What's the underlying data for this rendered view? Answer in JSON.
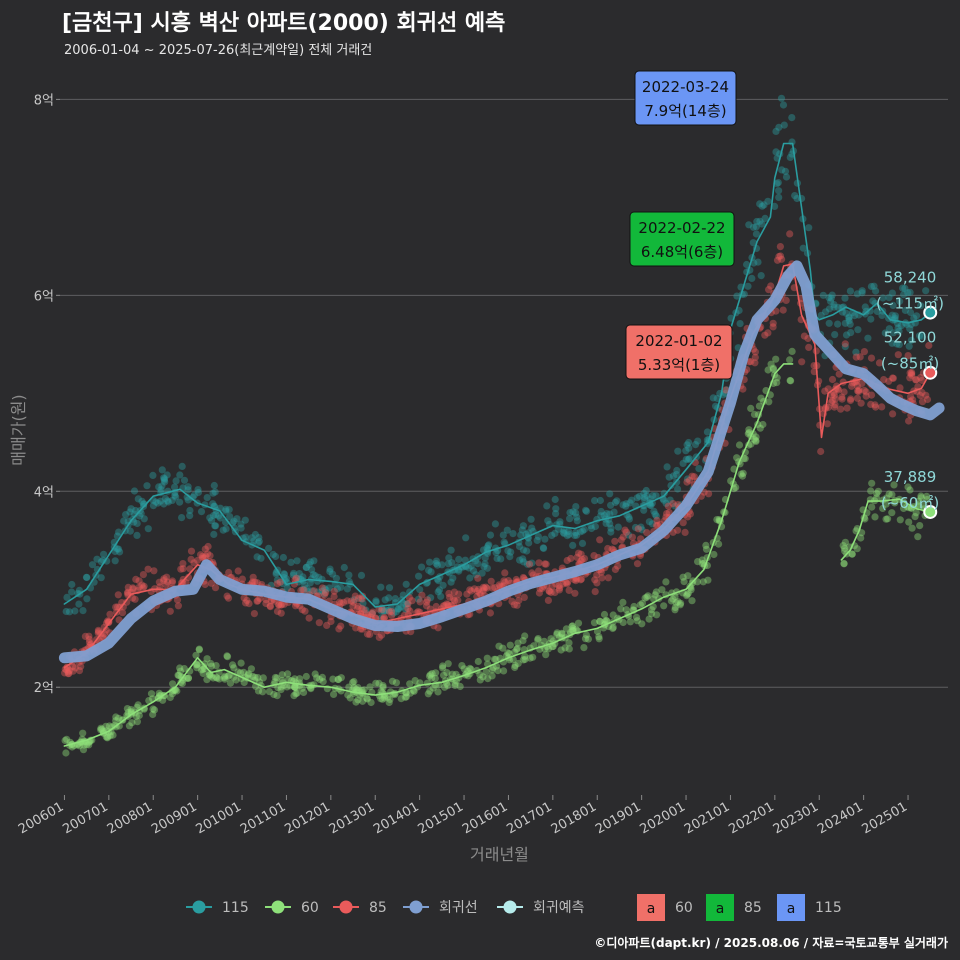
{
  "header": {
    "title": "[금천구] 시흥 벽산 아파트(2000) 회귀선 예측",
    "subtitle": "2006-01-04 ~ 2025-07-26(최근계약일) 전체 거래건"
  },
  "caption": "©디아파트(dapt.kr) / 2025.08.06 / 자료=국토교통부 실거래가",
  "chart_data": {
    "type": "line",
    "xlabel": "거래년월",
    "ylabel": "매매가(원)",
    "x_range": [
      2005.9,
      2025.9
    ],
    "y_range": [
      0.9,
      8.3
    ],
    "y_ticks": [
      {
        "value": 2,
        "label": "2억"
      },
      {
        "value": 4,
        "label": "4억"
      },
      {
        "value": 6,
        "label": "6억"
      },
      {
        "value": 8,
        "label": "8억"
      }
    ],
    "x_ticks": [
      {
        "value": 2006.0,
        "label": "200601"
      },
      {
        "value": 2007.0,
        "label": "200701"
      },
      {
        "value": 2008.0,
        "label": "200801"
      },
      {
        "value": 2009.0,
        "label": "200901"
      },
      {
        "value": 2010.0,
        "label": "201001"
      },
      {
        "value": 2011.0,
        "label": "201101"
      },
      {
        "value": 2012.0,
        "label": "201201"
      },
      {
        "value": 2013.0,
        "label": "201301"
      },
      {
        "value": 2014.0,
        "label": "201401"
      },
      {
        "value": 2015.0,
        "label": "201501"
      },
      {
        "value": 2016.0,
        "label": "201601"
      },
      {
        "value": 2017.0,
        "label": "201701"
      },
      {
        "value": 2018.0,
        "label": "201801"
      },
      {
        "value": 2019.0,
        "label": "201901"
      },
      {
        "value": 2020.0,
        "label": "202001"
      },
      {
        "value": 2021.0,
        "label": "202101"
      },
      {
        "value": 2022.0,
        "label": "202201"
      },
      {
        "value": 2023.0,
        "label": "202301"
      },
      {
        "value": 2024.0,
        "label": "202401"
      },
      {
        "value": 2025.0,
        "label": "202501"
      }
    ],
    "grid": true,
    "legend_position": "bottom",
    "series": [
      {
        "name": "115",
        "color": "#2a9da0",
        "x": [
          2006.0,
          2006.5,
          2007.0,
          2007.5,
          2008.0,
          2008.6,
          2009.0,
          2009.5,
          2010.0,
          2010.5,
          2011.0,
          2011.5,
          2012.0,
          2012.5,
          2013.0,
          2013.5,
          2014.0,
          2014.5,
          2015.0,
          2015.5,
          2016.0,
          2016.5,
          2017.0,
          2017.5,
          2018.0,
          2018.5,
          2019.0,
          2019.5,
          2020.0,
          2020.5,
          2020.8,
          2021.0,
          2021.3,
          2021.6,
          2021.9,
          2022.0,
          2022.2,
          2022.4,
          2022.6,
          2022.8,
          2022.9,
          2023.0,
          2023.3,
          2023.6,
          2024.0,
          2024.3,
          2024.6,
          2025.0,
          2025.3,
          2025.5
        ],
        "y": [
          2.85,
          3.0,
          3.35,
          3.7,
          3.95,
          4.02,
          3.88,
          3.8,
          3.5,
          3.4,
          3.05,
          3.1,
          3.08,
          3.05,
          2.82,
          2.85,
          3.05,
          3.15,
          3.25,
          3.38,
          3.45,
          3.55,
          3.65,
          3.62,
          3.7,
          3.75,
          3.85,
          3.95,
          4.22,
          4.5,
          5.0,
          5.65,
          6.1,
          6.55,
          6.8,
          7.2,
          7.55,
          7.55,
          6.9,
          6.25,
          5.8,
          5.75,
          5.8,
          5.88,
          5.8,
          5.92,
          5.75,
          5.72,
          5.75,
          5.82
        ]
      },
      {
        "name": "60",
        "color": "#8ee07a",
        "x": [
          2006.0,
          2006.5,
          2007.0,
          2007.5,
          2008.0,
          2008.5,
          2009.0,
          2009.3,
          2009.6,
          2010.0,
          2010.5,
          2011.0,
          2011.5,
          2012.0,
          2012.5,
          2013.0,
          2013.5,
          2014.0,
          2014.5,
          2015.0,
          2015.5,
          2016.0,
          2016.5,
          2017.0,
          2017.5,
          2018.0,
          2018.5,
          2019.0,
          2019.5,
          2020.0,
          2020.4,
          2020.8,
          2021.2,
          2021.6,
          2022.0,
          2022.2,
          2022.4
        ],
        "y": [
          1.4,
          1.46,
          1.55,
          1.72,
          1.85,
          2.0,
          2.3,
          2.15,
          2.18,
          2.1,
          2.0,
          2.05,
          2.02,
          2.0,
          1.95,
          1.92,
          1.95,
          2.02,
          2.05,
          2.12,
          2.2,
          2.3,
          2.38,
          2.45,
          2.55,
          2.6,
          2.7,
          2.8,
          2.92,
          3.0,
          3.2,
          3.7,
          4.3,
          4.7,
          5.2,
          5.3,
          5.3
        ]
      },
      {
        "name": "60",
        "color": "#8ee07a",
        "x": [
          2023.5,
          2023.7,
          2023.9,
          2024.1,
          2024.4,
          2024.8,
          2025.2,
          2025.5
        ],
        "y": [
          3.3,
          3.4,
          3.6,
          3.9,
          3.9,
          3.92,
          3.82,
          3.79
        ]
      },
      {
        "name": "85",
        "color": "#ea5b5b",
        "x": [
          2006.0,
          2006.5,
          2007.0,
          2007.5,
          2008.0,
          2008.5,
          2009.0,
          2009.3,
          2009.7,
          2010.0,
          2010.5,
          2011.0,
          2011.5,
          2012.0,
          2012.5,
          2013.0,
          2013.5,
          2014.0,
          2014.5,
          2015.0,
          2015.5,
          2016.0,
          2016.5,
          2017.0,
          2017.5,
          2018.0,
          2018.5,
          2019.0,
          2019.5,
          2020.0,
          2020.5,
          2021.0,
          2021.5,
          2022.0,
          2022.2,
          2022.4,
          2022.6,
          2022.9,
          2023.05,
          2023.2,
          2023.5,
          2024.0,
          2024.5,
          2025.0,
          2025.3,
          2025.5
        ],
        "y": [
          2.2,
          2.35,
          2.65,
          2.95,
          3.0,
          3.0,
          3.25,
          3.2,
          3.05,
          3.0,
          2.95,
          2.92,
          2.9,
          2.8,
          2.75,
          2.65,
          2.7,
          2.75,
          2.8,
          2.85,
          2.92,
          3.0,
          3.08,
          3.12,
          3.18,
          3.25,
          3.35,
          3.45,
          3.62,
          3.85,
          4.2,
          4.95,
          5.6,
          6.0,
          6.3,
          6.32,
          5.8,
          5.5,
          4.55,
          5.0,
          5.1,
          5.15,
          5.05,
          5.0,
          5.05,
          5.21
        ]
      },
      {
        "name": "회귀선",
        "color": "#7f9fd1",
        "x": [
          2006.0,
          2006.5,
          2007.0,
          2007.5,
          2008.0,
          2008.5,
          2008.9,
          2009.2,
          2009.5,
          2010.0,
          2010.5,
          2011.0,
          2011.5,
          2012.0,
          2012.5,
          2013.0,
          2013.5,
          2014.0,
          2014.5,
          2015.0,
          2015.5,
          2016.0,
          2016.5,
          2017.0,
          2017.5,
          2018.0,
          2018.5,
          2019.0,
          2019.5,
          2020.0,
          2020.5,
          2021.0,
          2021.3,
          2021.6,
          2022.0,
          2022.3,
          2022.5,
          2022.7,
          2022.9,
          2023.2,
          2023.6,
          2024.0,
          2024.3,
          2024.6,
          2024.9,
          2025.2,
          2025.5,
          2025.7
        ],
        "y": [
          2.3,
          2.32,
          2.45,
          2.7,
          2.88,
          2.98,
          3.0,
          3.25,
          3.1,
          3.0,
          2.98,
          2.92,
          2.9,
          2.8,
          2.7,
          2.63,
          2.62,
          2.65,
          2.72,
          2.8,
          2.88,
          2.98,
          3.06,
          3.12,
          3.18,
          3.25,
          3.35,
          3.42,
          3.6,
          3.85,
          4.2,
          4.9,
          5.4,
          5.75,
          5.95,
          6.2,
          6.3,
          6.1,
          5.6,
          5.45,
          5.25,
          5.2,
          5.08,
          4.95,
          4.88,
          4.82,
          4.78,
          4.85
        ]
      }
    ],
    "points": [
      {
        "x": 2025.5,
        "y": 5.824,
        "series": "115"
      },
      {
        "x": 2025.5,
        "y": 5.21,
        "series": "85"
      },
      {
        "x": 2025.5,
        "y": 3.789,
        "series": "60"
      }
    ],
    "callouts": [
      {
        "date": "2022-03-24",
        "price": "7.9억(14층)",
        "x": 2022.23,
        "y": 7.9,
        "color": "#6b96f5"
      },
      {
        "date": "2022-02-22",
        "price": "6.48억(6층)",
        "x": 2022.14,
        "y": 6.48,
        "color": "#12b83a"
      },
      {
        "date": "2022-01-02",
        "price": "5.33억(1층)",
        "x": 2022.0,
        "y": 5.33,
        "color": "#f07068"
      }
    ],
    "end_labels": [
      {
        "value": "58,240",
        "area": "(~115㎡)",
        "color": "#8fd8d8"
      },
      {
        "value": "52,100",
        "area": "(~85㎡)",
        "color": "#8fd8d8"
      },
      {
        "value": "37,889",
        "area": "(~60㎡)",
        "color": "#8fd8d8"
      }
    ],
    "legend": {
      "items": [
        {
          "label": "115",
          "color": "#2a9da0"
        },
        {
          "label": "60",
          "color": "#8ee07a"
        },
        {
          "label": "85",
          "color": "#ea5b5b"
        },
        {
          "label": "회귀선",
          "color": "#7f9fd1"
        },
        {
          "label": "회귀예측",
          "color": "#b6ecec"
        }
      ],
      "boxes": [
        {
          "glyph": "a",
          "label": "60",
          "color": "#f07068"
        },
        {
          "glyph": "a",
          "label": "85",
          "color": "#12b83a"
        },
        {
          "glyph": "a",
          "label": "115",
          "color": "#6b96f5"
        }
      ]
    }
  }
}
